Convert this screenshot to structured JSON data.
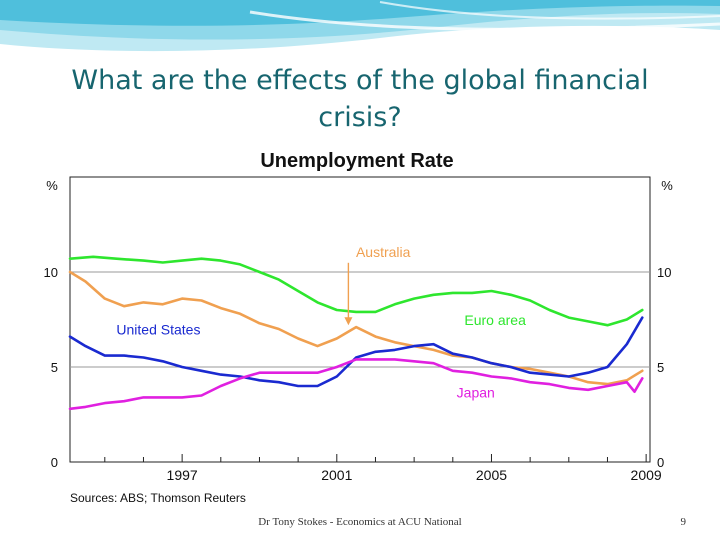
{
  "slide": {
    "title": "What are the effects of the global financial crisis?",
    "footer": "Dr Tony Stokes - Economics at ACU National",
    "page_number": "9",
    "theme_colors": {
      "title": "#17656f",
      "wave_light": "#bfe9f3",
      "wave_mid": "#6fcde4",
      "wave_dark": "#2aa7c9"
    }
  },
  "chart_data": {
    "type": "line",
    "title": "Unemployment Rate",
    "source": "Sources: ABS; Thomson Reuters",
    "y_unit_left": "%",
    "y_unit_right": "%",
    "xlim": [
      1994.1,
      2009.1
    ],
    "ylim": [
      0,
      15
    ],
    "y_ticks": [
      0,
      5,
      10
    ],
    "x_ticks": [
      1997,
      2001,
      2005,
      2009
    ],
    "grid": {
      "horizontal": [
        5,
        10
      ]
    },
    "series": [
      {
        "name": "Euro area",
        "color": "#2ee62e",
        "points": [
          [
            1994.1,
            10.7
          ],
          [
            1994.7,
            10.8
          ],
          [
            1995.3,
            10.7
          ],
          [
            1996.0,
            10.6
          ],
          [
            1996.5,
            10.5
          ],
          [
            1997.0,
            10.6
          ],
          [
            1997.5,
            10.7
          ],
          [
            1998.0,
            10.6
          ],
          [
            1998.5,
            10.4
          ],
          [
            1999.0,
            10.0
          ],
          [
            1999.5,
            9.6
          ],
          [
            2000.0,
            9.0
          ],
          [
            2000.5,
            8.4
          ],
          [
            2001.0,
            8.0
          ],
          [
            2001.5,
            7.9
          ],
          [
            2002.0,
            7.9
          ],
          [
            2002.5,
            8.3
          ],
          [
            2003.0,
            8.6
          ],
          [
            2003.5,
            8.8
          ],
          [
            2004.0,
            8.9
          ],
          [
            2004.5,
            8.9
          ],
          [
            2005.0,
            9.0
          ],
          [
            2005.5,
            8.8
          ],
          [
            2006.0,
            8.5
          ],
          [
            2006.5,
            8.0
          ],
          [
            2007.0,
            7.6
          ],
          [
            2007.5,
            7.4
          ],
          [
            2008.0,
            7.2
          ],
          [
            2008.5,
            7.5
          ],
          [
            2008.9,
            8.0
          ]
        ]
      },
      {
        "name": "Australia",
        "color": "#f0a050",
        "points": [
          [
            1994.1,
            10.0
          ],
          [
            1994.5,
            9.5
          ],
          [
            1995.0,
            8.6
          ],
          [
            1995.5,
            8.2
          ],
          [
            1996.0,
            8.4
          ],
          [
            1996.5,
            8.3
          ],
          [
            1997.0,
            8.6
          ],
          [
            1997.5,
            8.5
          ],
          [
            1998.0,
            8.1
          ],
          [
            1998.5,
            7.8
          ],
          [
            1999.0,
            7.3
          ],
          [
            1999.5,
            7.0
          ],
          [
            2000.0,
            6.5
          ],
          [
            2000.5,
            6.1
          ],
          [
            2001.0,
            6.5
          ],
          [
            2001.5,
            7.1
          ],
          [
            2002.0,
            6.6
          ],
          [
            2002.5,
            6.3
          ],
          [
            2003.0,
            6.1
          ],
          [
            2003.5,
            5.9
          ],
          [
            2004.0,
            5.6
          ],
          [
            2004.5,
            5.5
          ],
          [
            2005.0,
            5.2
          ],
          [
            2005.5,
            5.0
          ],
          [
            2006.0,
            4.9
          ],
          [
            2006.5,
            4.7
          ],
          [
            2007.0,
            4.5
          ],
          [
            2007.5,
            4.2
          ],
          [
            2008.0,
            4.1
          ],
          [
            2008.5,
            4.3
          ],
          [
            2008.9,
            4.8
          ]
        ]
      },
      {
        "name": "United States",
        "color": "#1a2ad0",
        "points": [
          [
            1994.1,
            6.6
          ],
          [
            1994.5,
            6.1
          ],
          [
            1995.0,
            5.6
          ],
          [
            1995.5,
            5.6
          ],
          [
            1996.0,
            5.5
          ],
          [
            1996.5,
            5.3
          ],
          [
            1997.0,
            5.0
          ],
          [
            1997.5,
            4.8
          ],
          [
            1998.0,
            4.6
          ],
          [
            1998.5,
            4.5
          ],
          [
            1999.0,
            4.3
          ],
          [
            1999.5,
            4.2
          ],
          [
            2000.0,
            4.0
          ],
          [
            2000.5,
            4.0
          ],
          [
            2001.0,
            4.5
          ],
          [
            2001.5,
            5.5
          ],
          [
            2002.0,
            5.8
          ],
          [
            2002.5,
            5.9
          ],
          [
            2003.0,
            6.1
          ],
          [
            2003.5,
            6.2
          ],
          [
            2004.0,
            5.7
          ],
          [
            2004.5,
            5.5
          ],
          [
            2005.0,
            5.2
          ],
          [
            2005.5,
            5.0
          ],
          [
            2006.0,
            4.7
          ],
          [
            2006.5,
            4.6
          ],
          [
            2007.0,
            4.5
          ],
          [
            2007.5,
            4.7
          ],
          [
            2008.0,
            5.0
          ],
          [
            2008.5,
            6.2
          ],
          [
            2008.9,
            7.6
          ]
        ]
      },
      {
        "name": "Japan",
        "color": "#e020e0",
        "points": [
          [
            1994.1,
            2.8
          ],
          [
            1994.5,
            2.9
          ],
          [
            1995.0,
            3.1
          ],
          [
            1995.5,
            3.2
          ],
          [
            1996.0,
            3.4
          ],
          [
            1996.5,
            3.4
          ],
          [
            1997.0,
            3.4
          ],
          [
            1997.5,
            3.5
          ],
          [
            1998.0,
            4.0
          ],
          [
            1998.5,
            4.4
          ],
          [
            1999.0,
            4.7
          ],
          [
            1999.5,
            4.7
          ],
          [
            2000.0,
            4.7
          ],
          [
            2000.5,
            4.7
          ],
          [
            2001.0,
            5.0
          ],
          [
            2001.5,
            5.4
          ],
          [
            2002.0,
            5.4
          ],
          [
            2002.5,
            5.4
          ],
          [
            2003.0,
            5.3
          ],
          [
            2003.5,
            5.2
          ],
          [
            2004.0,
            4.8
          ],
          [
            2004.5,
            4.7
          ],
          [
            2005.0,
            4.5
          ],
          [
            2005.5,
            4.4
          ],
          [
            2006.0,
            4.2
          ],
          [
            2006.5,
            4.1
          ],
          [
            2007.0,
            3.9
          ],
          [
            2007.5,
            3.8
          ],
          [
            2008.0,
            4.0
          ],
          [
            2008.5,
            4.2
          ],
          [
            2008.7,
            3.7
          ],
          [
            2008.9,
            4.4
          ]
        ]
      }
    ],
    "annotations": [
      {
        "text": "Australia",
        "color": "#f0a050",
        "arrow": true
      },
      {
        "text": "United States",
        "color": "#1a2ad0"
      },
      {
        "text": "Euro area",
        "color": "#2ee62e"
      },
      {
        "text": "Japan",
        "color": "#e020e0"
      }
    ]
  }
}
